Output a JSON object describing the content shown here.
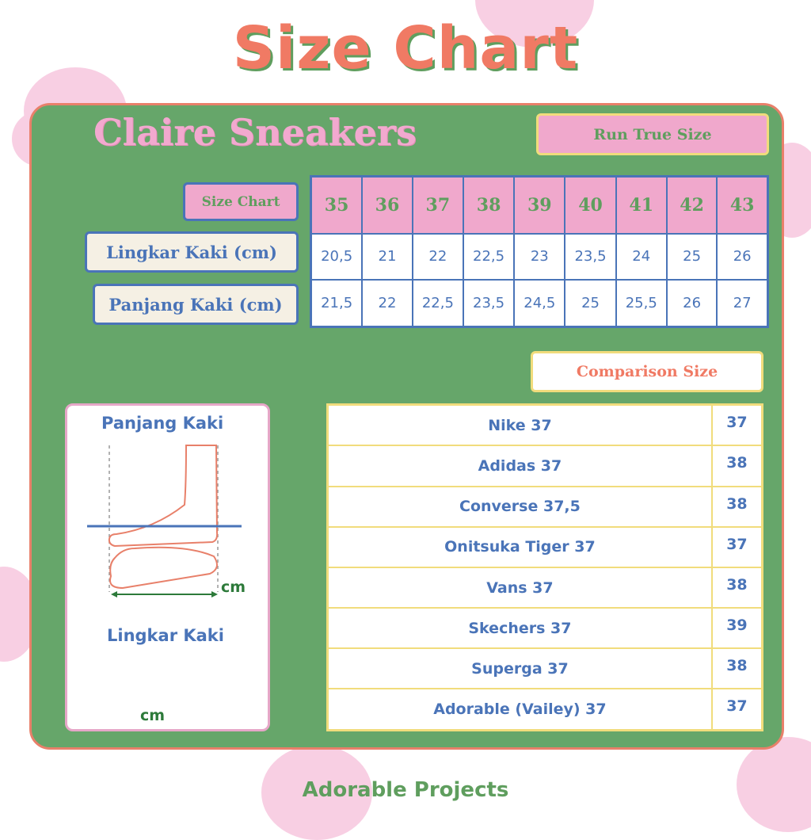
{
  "title": "Size Chart",
  "brand": "Claire Sneakers",
  "badge": "Run True Size",
  "size_table": {
    "header_label": "Size Chart",
    "sizes": [
      "35",
      "36",
      "37",
      "38",
      "39",
      "40",
      "41",
      "42",
      "43"
    ],
    "rows": [
      {
        "label": "Lingkar Kaki (cm)",
        "values": [
          "20,5",
          "21",
          "22",
          "22,5",
          "23",
          "23,5",
          "24",
          "25",
          "26"
        ]
      },
      {
        "label": "Panjang Kaki (cm)",
        "values": [
          "21,5",
          "22",
          "22,5",
          "23,5",
          "24,5",
          "25",
          "25,5",
          "26",
          "27"
        ]
      }
    ]
  },
  "comparison": {
    "title": "Comparison Size",
    "rows": [
      {
        "brand": "Nike 37",
        "size": "37"
      },
      {
        "brand": "Adidas 37",
        "size": "38"
      },
      {
        "brand": "Converse 37,5",
        "size": "38"
      },
      {
        "brand": "Onitsuka Tiger 37",
        "size": "37"
      },
      {
        "brand": "Vans 37",
        "size": "38"
      },
      {
        "brand": "Skechers 37",
        "size": "39"
      },
      {
        "brand": "Superga 37",
        "size": "38"
      },
      {
        "brand": "Adorable (Vailey) 37",
        "size": "37"
      }
    ]
  },
  "guide": {
    "length_title": "Panjang Kaki",
    "girth_title": "Lingkar Kaki",
    "unit": "cm"
  },
  "footer": "Adorable Projects",
  "colors": {
    "panel": "#66a66a",
    "pink": "#f0a8cc",
    "coral": "#f07a64",
    "blue": "#4a74b8",
    "yellow": "#f1dc7c",
    "cream": "#f5f0e4"
  }
}
